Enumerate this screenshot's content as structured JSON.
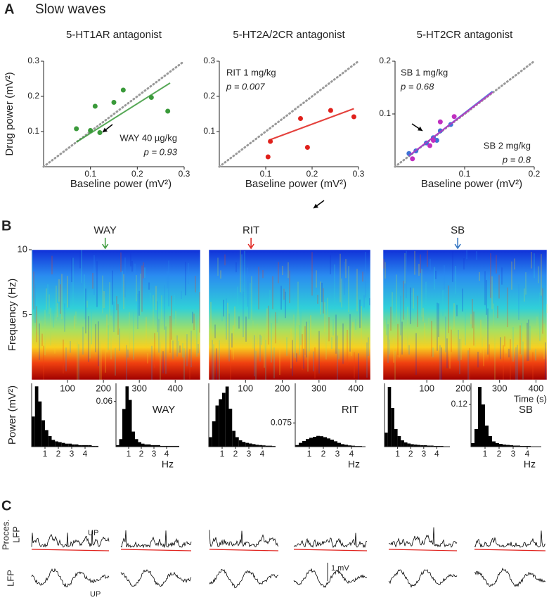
{
  "title": "Slow waves",
  "panel_labels": {
    "a": "A",
    "b": "B",
    "c": "C"
  },
  "chart_data": [
    {
      "type": "scatter",
      "title": "5-HT1AR antagonist",
      "title_color": "#3a9a3a",
      "xlabel": "Baseline power (mV²)",
      "ylabel": "Drug power (mV²)",
      "xlim": [
        0,
        0.3
      ],
      "ylim": [
        0,
        0.3
      ],
      "xticks": [
        0.1,
        0.2,
        0.3
      ],
      "yticks": [
        0.1,
        0.2,
        0.3
      ],
      "diagonal": true,
      "series": [
        {
          "name": "WAY 40 µg/kg",
          "p_label": "p = 0.93",
          "color": "#3a9a3a",
          "x": [
            0.07,
            0.1,
            0.11,
            0.12,
            0.15,
            0.17,
            0.23,
            0.265
          ],
          "values": [
            0.108,
            0.103,
            0.172,
            0.097,
            0.183,
            0.218,
            0.197,
            0.158
          ],
          "fit_x": [
            0.07,
            0.27
          ],
          "fit_y": [
            0.07,
            0.238
          ]
        }
      ]
    },
    {
      "type": "scatter",
      "title": "5-HT2A/2CR antagonist",
      "title_color": "#e0201b",
      "xlabel": "Baseline power (mV²)",
      "xlim": [
        0,
        0.3
      ],
      "ylim": [
        0,
        0.3
      ],
      "xticks": [
        0.1,
        0.2,
        0.3
      ],
      "yticks": [
        0.1,
        0.2,
        0.3
      ],
      "diagonal": true,
      "series": [
        {
          "name": "RIT 1 mg/kg",
          "p_label": "p = 0.007",
          "color": "#e0201b",
          "x": [
            0.105,
            0.11,
            0.175,
            0.19,
            0.24,
            0.29
          ],
          "values": [
            0.028,
            0.072,
            0.137,
            0.055,
            0.16,
            0.142
          ],
          "fit_x": [
            0.11,
            0.29
          ],
          "fit_y": [
            0.077,
            0.165
          ]
        }
      ]
    },
    {
      "type": "scatter",
      "title": "5-HT2CR antagonist",
      "title_color": "#2a6fc0",
      "xlabel": "Baseline power (mV²)",
      "xlim": [
        0,
        0.2
      ],
      "ylim": [
        0,
        0.2
      ],
      "xticks": [
        0.1,
        0.2
      ],
      "yticks": [
        0.1,
        0.2
      ],
      "diagonal": true,
      "series": [
        {
          "name": "SB 1 mg/kg",
          "p_label": "p = 0.68",
          "color": "#3f73d6",
          "x": [
            0.02,
            0.03,
            0.045,
            0.055,
            0.06,
            0.065,
            0.08
          ],
          "values": [
            0.025,
            0.03,
            0.045,
            0.055,
            0.05,
            0.068,
            0.08
          ],
          "fit_x": [
            0.02,
            0.14
          ],
          "fit_y": [
            0.02,
            0.143
          ]
        },
        {
          "name": "SB 2 mg/kg",
          "p_label": "p = 0.8",
          "color": "#c030c0",
          "x": [
            0.025,
            0.05,
            0.055,
            0.065,
            0.085
          ],
          "values": [
            0.015,
            0.04,
            0.05,
            0.085,
            0.095
          ],
          "fit_x": [
            0.02,
            0.14
          ],
          "fit_y": [
            0.021,
            0.141
          ]
        }
      ]
    },
    {
      "type": "spectrogram",
      "marker_label": "WAY",
      "marker_x": 205,
      "color": "#3a9a3a",
      "ylabel": "Frequency (Hz)",
      "xlim": [
        0,
        470
      ],
      "ylim": [
        0,
        10
      ],
      "xticks": [
        100,
        200,
        300,
        400
      ],
      "yticks": [
        5,
        10
      ]
    },
    {
      "type": "spectrogram",
      "marker_label": "RIT",
      "marker_x": 115,
      "color": "#e0201b",
      "xlim": [
        0,
        440
      ],
      "ylim": [
        0,
        10
      ],
      "xticks": [
        100,
        200,
        300,
        400
      ]
    },
    {
      "type": "spectrogram",
      "marker_label": "SB",
      "marker_x": 185,
      "color": "#2a6fc0",
      "xlabel": "Time (s)",
      "xlim": [
        -20,
        430
      ],
      "ylim": [
        0,
        10
      ],
      "xticks": [
        100,
        200,
        300,
        400
      ]
    },
    {
      "type": "histogram",
      "ylabel": "Power (mV²)",
      "color": "#000000",
      "xlim": [
        0,
        5
      ],
      "ylim": [
        0,
        0.084
      ],
      "xticks": [
        1,
        2,
        3,
        4
      ],
      "bins": [
        0,
        0.25,
        0.5,
        0.75,
        1,
        1.25,
        1.5,
        1.75,
        2,
        2.25,
        2.5,
        2.75,
        3,
        3.25,
        3.5,
        3.75,
        4,
        4.25,
        4.5,
        4.75,
        5
      ],
      "values": [
        0.04,
        0.08,
        0.06,
        0.035,
        0.022,
        0.014,
        0.009,
        0.007,
        0.006,
        0.005,
        0.004,
        0.004,
        0.003,
        0.003,
        0.002,
        0.002,
        0.002,
        0.002,
        0.001,
        0.001
      ]
    },
    {
      "type": "histogram",
      "annotation": "WAY",
      "annotation_color": "#3a9a3a",
      "xlabel": "Hz",
      "color": "#000000",
      "xlim": [
        0,
        5
      ],
      "ylim": [
        0,
        0.084
      ],
      "xticks": [
        1,
        2,
        3,
        4
      ],
      "yticks": [
        0.06
      ],
      "bins": [
        0,
        0.25,
        0.5,
        0.75,
        1,
        1.25,
        1.5,
        1.75,
        2,
        2.25,
        2.5,
        2.75,
        3,
        3.25,
        3.5,
        3.75,
        4,
        4.25,
        4.5,
        4.75,
        5
      ],
      "values": [
        0.002,
        0.01,
        0.05,
        0.08,
        0.062,
        0.02,
        0.01,
        0.006,
        0.004,
        0.003,
        0.003,
        0.002,
        0.002,
        0.002,
        0.001,
        0.001,
        0.001,
        0.001,
        0.001,
        0.001
      ]
    },
    {
      "type": "histogram",
      "color": "#000000",
      "xlim": [
        0,
        5
      ],
      "ylim": [
        0,
        0.2
      ],
      "xticks": [
        1,
        2,
        3,
        4
      ],
      "bins": [
        0,
        0.25,
        0.5,
        0.75,
        1,
        1.25,
        1.5,
        1.75,
        2,
        2.25,
        2.5,
        2.75,
        3,
        3.25,
        3.5,
        3.75,
        4,
        4.25,
        4.5,
        4.75,
        5
      ],
      "values": [
        0.03,
        0.08,
        0.13,
        0.15,
        0.17,
        0.19,
        0.12,
        0.05,
        0.03,
        0.02,
        0.015,
        0.012,
        0.01,
        0.008,
        0.006,
        0.005,
        0.004,
        0.003,
        0.003,
        0.002
      ]
    },
    {
      "type": "histogram",
      "annotation": "RIT",
      "annotation_color": "#e0201b",
      "xlabel": "Hz",
      "color": "#000000",
      "xlim": [
        0,
        5
      ],
      "ylim": [
        0,
        0.2
      ],
      "xticks": [
        1,
        2,
        3,
        4
      ],
      "yticks": [
        0.075
      ],
      "bins": [
        0,
        0.25,
        0.5,
        0.75,
        1,
        1.25,
        1.5,
        1.75,
        2,
        2.25,
        2.5,
        2.75,
        3,
        3.25,
        3.5,
        3.75,
        4,
        4.25,
        4.5,
        4.75,
        5
      ],
      "values": [
        0.005,
        0.012,
        0.018,
        0.024,
        0.028,
        0.031,
        0.034,
        0.033,
        0.03,
        0.026,
        0.022,
        0.017,
        0.012,
        0.008,
        0.006,
        0.004,
        0.003,
        0.002,
        0.002,
        0.001
      ]
    },
    {
      "type": "histogram",
      "color": "#000000",
      "xlim": [
        0,
        5
      ],
      "ylim": [
        0,
        0.18
      ],
      "xticks": [
        1,
        2,
        3,
        4
      ],
      "bins": [
        0,
        0.25,
        0.5,
        0.75,
        1,
        1.25,
        1.5,
        1.75,
        2,
        2.25,
        2.5,
        2.75,
        3,
        3.25,
        3.5,
        3.75,
        4,
        4.25,
        4.5,
        4.75,
        5
      ],
      "values": [
        0.04,
        0.17,
        0.11,
        0.05,
        0.03,
        0.018,
        0.012,
        0.009,
        0.007,
        0.006,
        0.005,
        0.004,
        0.004,
        0.003,
        0.003,
        0.002,
        0.002,
        0.002,
        0.001,
        0.001
      ]
    },
    {
      "type": "histogram",
      "annotation": "SB",
      "annotation_color": "#2a6fc0",
      "xlabel": "Hz",
      "color": "#000000",
      "xlim": [
        0,
        5
      ],
      "ylim": [
        0,
        0.18
      ],
      "xticks": [
        1,
        2,
        3,
        4
      ],
      "yticks": [
        0.12
      ],
      "bins": [
        0,
        0.25,
        0.5,
        0.75,
        1,
        1.25,
        1.5,
        1.75,
        2,
        2.25,
        2.5,
        2.75,
        3,
        3.25,
        3.5,
        3.75,
        4,
        4.25,
        4.5,
        4.75,
        5
      ],
      "values": [
        0.01,
        0.05,
        0.17,
        0.12,
        0.06,
        0.03,
        0.015,
        0.01,
        0.008,
        0.006,
        0.005,
        0.004,
        0.003,
        0.003,
        0.002,
        0.002,
        0.002,
        0.001,
        0.001,
        0.001
      ]
    }
  ],
  "traces": {
    "proces_label": [
      "Proces.",
      "LFP"
    ],
    "lfp_label": "LFP",
    "up_labels": [
      "UP",
      "UP"
    ],
    "scale_label": "1 mV"
  }
}
